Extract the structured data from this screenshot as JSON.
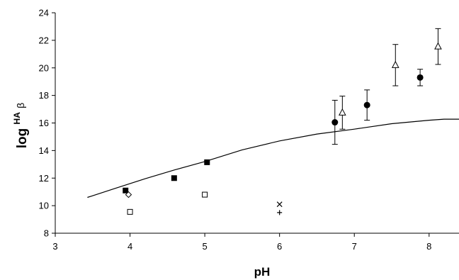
{
  "chart_data": {
    "type": "scatter",
    "title": "",
    "xlabel": "pH",
    "ylabel": {
      "main": "log",
      "superscript": "HA",
      "subscript": "β"
    },
    "xlim": [
      3,
      8.4
    ],
    "ylim": [
      8,
      24
    ],
    "x_ticks": [
      "3",
      "4",
      "5",
      "6",
      "7",
      "8"
    ],
    "y_ticks": [
      "8",
      "10",
      "12",
      "14",
      "16",
      "18",
      "20",
      "22",
      "24"
    ],
    "grid": false,
    "legend": "none",
    "series": [
      {
        "marker": "line",
        "points": [
          {
            "x": 3.43,
            "y": 10.6
          },
          {
            "x": 3.8,
            "y": 11.25
          },
          {
            "x": 4.2,
            "y": 11.95
          },
          {
            "x": 4.6,
            "y": 12.6
          },
          {
            "x": 5.0,
            "y": 13.2
          },
          {
            "x": 5.5,
            "y": 14.05
          },
          {
            "x": 6.0,
            "y": 14.7
          },
          {
            "x": 6.5,
            "y": 15.2
          },
          {
            "x": 7.0,
            "y": 15.55
          },
          {
            "x": 7.5,
            "y": 15.95
          },
          {
            "x": 8.0,
            "y": 16.2
          },
          {
            "x": 8.2,
            "y": 16.28
          },
          {
            "x": 8.4,
            "y": 16.28
          }
        ]
      },
      {
        "marker": "filled-square",
        "points": [
          {
            "x": 3.94,
            "y": 11.1
          },
          {
            "x": 4.59,
            "y": 12.0
          },
          {
            "x": 5.03,
            "y": 13.15
          }
        ]
      },
      {
        "marker": "open-square",
        "points": [
          {
            "x": 4.0,
            "y": 9.55
          },
          {
            "x": 5.0,
            "y": 10.8
          }
        ]
      },
      {
        "marker": "open-diamond",
        "points": [
          {
            "x": 3.98,
            "y": 10.8
          }
        ]
      },
      {
        "marker": "cross",
        "points": [
          {
            "x": 6.0,
            "y": 10.1
          }
        ]
      },
      {
        "marker": "plus",
        "points": [
          {
            "x": 6.0,
            "y": 9.5
          }
        ]
      },
      {
        "marker": "filled-circle",
        "points": [
          {
            "x": 6.74,
            "y": 16.05,
            "err": 1.6
          },
          {
            "x": 7.17,
            "y": 17.3,
            "err": 1.1
          },
          {
            "x": 7.88,
            "y": 19.3,
            "err": 0.6
          }
        ]
      },
      {
        "marker": "open-triangle",
        "points": [
          {
            "x": 6.84,
            "y": 16.75,
            "err": 1.2
          },
          {
            "x": 7.55,
            "y": 20.2,
            "err": 1.5
          },
          {
            "x": 8.12,
            "y": 21.55,
            "err": 1.3
          }
        ]
      }
    ]
  }
}
